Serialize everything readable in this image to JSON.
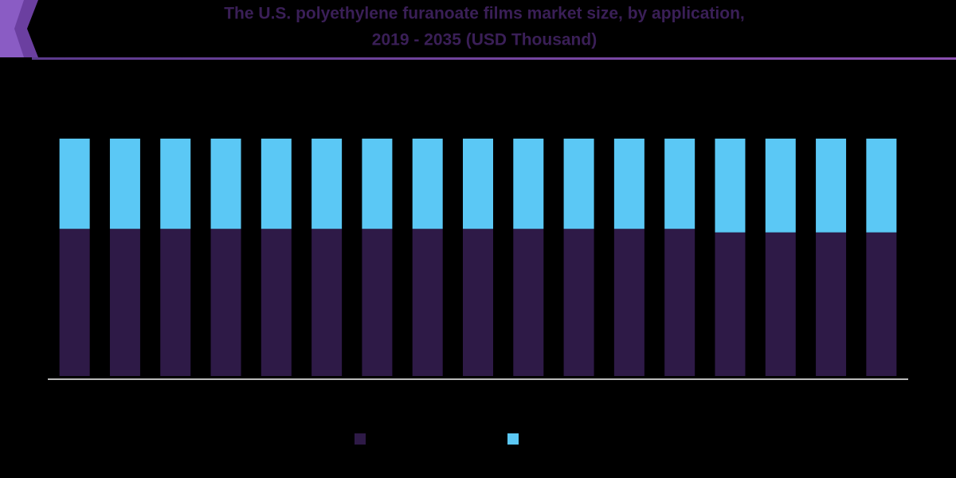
{
  "chart_data": {
    "type": "stacked-bar",
    "title": [
      "The U.S. polyethylene furanoate films market size, by application,",
      "2019 - 2035 (USD Thousand)"
    ],
    "categories": [
      null,
      null,
      null,
      null,
      null,
      null,
      null,
      null,
      null,
      null,
      null,
      null,
      null,
      null,
      null,
      null,
      null
    ],
    "series": [
      {
        "color": "#2e1a47",
        "values": [
          62,
          62,
          62,
          62,
          62,
          62,
          62,
          62,
          62,
          62,
          62,
          62,
          62,
          60.5,
          60.5,
          60.5,
          60.5
        ]
      },
      {
        "color": "#5bc8f5",
        "values": [
          38,
          38,
          38,
          38,
          38,
          38,
          38,
          38,
          38,
          38,
          38,
          38,
          38,
          39.5,
          39.5,
          39.5,
          39.5
        ]
      }
    ],
    "ylim": [
      0,
      100
    ]
  }
}
